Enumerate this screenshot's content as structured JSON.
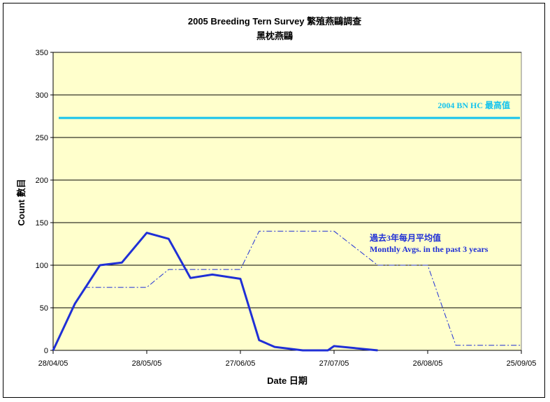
{
  "chart_data": {
    "type": "line",
    "title": "2005 Breeding Tern Survey 繁殖燕鷗調查",
    "subtitle": "黑枕燕鷗",
    "xlabel": "Date 日期",
    "ylabel": "Count 數目",
    "ylim": [
      0,
      350
    ],
    "yticks": [
      0,
      50,
      100,
      150,
      200,
      250,
      300,
      350
    ],
    "xlim": [
      "2005-04-28",
      "2005-09-25"
    ],
    "xtick_labels": [
      "28/04/05",
      "28/05/05",
      "27/06/05",
      "27/07/05",
      "26/08/05",
      "25/09/05"
    ],
    "xtick_dates": [
      "2005-04-28",
      "2005-05-28",
      "2005-06-27",
      "2005-07-27",
      "2005-08-26",
      "2005-09-25"
    ],
    "grid": "horizontal",
    "plot_background": "#ffffcc",
    "series": [
      {
        "style": "solid",
        "color": "#1f2fd6",
        "points": [
          {
            "x": "2005-04-28",
            "y": 0
          },
          {
            "x": "2005-05-05",
            "y": 55
          },
          {
            "x": "2005-05-13",
            "y": 100
          },
          {
            "x": "2005-05-20",
            "y": 103
          },
          {
            "x": "2005-05-28",
            "y": 138
          },
          {
            "x": "2005-06-04",
            "y": 131
          },
          {
            "x": "2005-06-11",
            "y": 85
          },
          {
            "x": "2005-06-18",
            "y": 89
          },
          {
            "x": "2005-06-27",
            "y": 84
          },
          {
            "x": "2005-07-03",
            "y": 12
          },
          {
            "x": "2005-07-08",
            "y": 4
          },
          {
            "x": "2005-07-17",
            "y": 0
          },
          {
            "x": "2005-07-25",
            "y": 0
          },
          {
            "x": "2005-07-27",
            "y": 5
          },
          {
            "x": "2005-08-10",
            "y": 0
          }
        ]
      },
      {
        "name": "過去3年每月平均值 Monthly Avgs. in the past 3 years",
        "style": "dash-dot",
        "color": "#1f2fd6",
        "points": [
          {
            "x": "2005-05-08",
            "y": 74
          },
          {
            "x": "2005-05-28",
            "y": 74
          },
          {
            "x": "2005-06-04",
            "y": 95
          },
          {
            "x": "2005-06-27",
            "y": 95
          },
          {
            "x": "2005-07-03",
            "y": 140
          },
          {
            "x": "2005-07-27",
            "y": 140
          },
          {
            "x": "2005-08-10",
            "y": 100
          },
          {
            "x": "2005-08-26",
            "y": 100
          },
          {
            "x": "2005-09-04",
            "y": 6
          },
          {
            "x": "2005-09-25",
            "y": 6
          }
        ]
      }
    ],
    "reference_line": {
      "label": "2004 BN HC 最高值",
      "y": 273,
      "color": "#13c3ee"
    },
    "annotations": [
      {
        "line1": "過去3年每月平均值",
        "line2": "Monthly Avgs. in the past 3 years",
        "color": "#1f2fd6"
      }
    ]
  }
}
